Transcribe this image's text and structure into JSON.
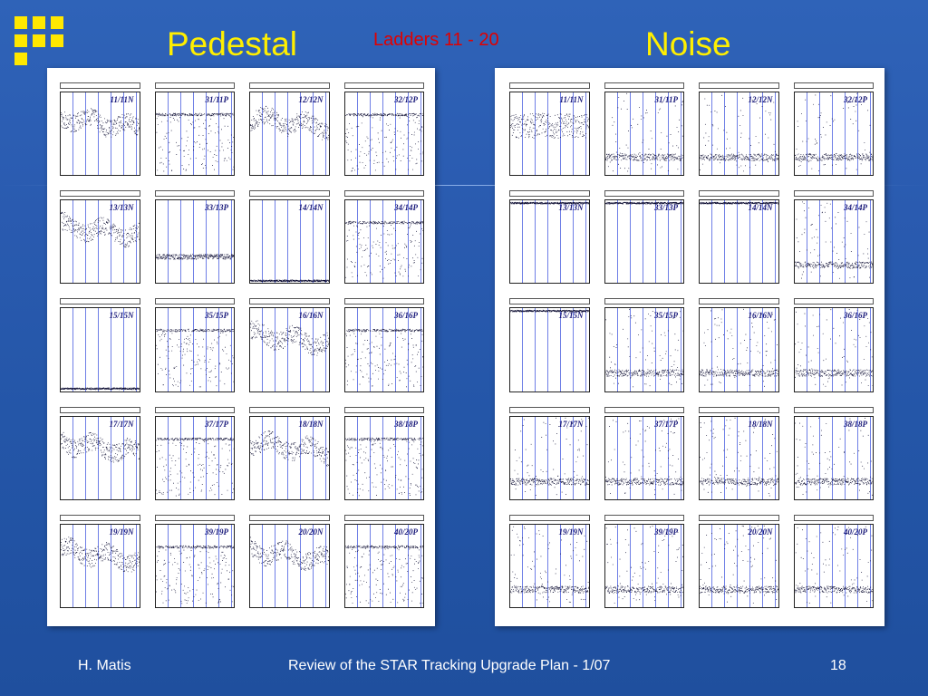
{
  "slide": {
    "title_left": "Pedestal",
    "title_center": "Ladders 11 - 20",
    "title_right": "Noise",
    "footer_left": "H. Matis",
    "footer_center": "Review of the STAR Tracking Upgrade Plan - 1/07",
    "footer_right": "18"
  },
  "colors": {
    "background": "#2a5bb0",
    "title": "#ffef00",
    "subtitle": "#e00000",
    "grid": "#6f7fe6"
  },
  "pedestal_plots": [
    {
      "label": "11/11N",
      "style": "band"
    },
    {
      "label": "31/11P",
      "style": "sat"
    },
    {
      "label": "12/12N",
      "style": "band"
    },
    {
      "label": "32/12P",
      "style": "sat"
    },
    {
      "label": "13/13N",
      "style": "band"
    },
    {
      "label": "33/13P",
      "style": "low"
    },
    {
      "label": "14/14N",
      "style": "flat"
    },
    {
      "label": "34/14P",
      "style": "sat"
    },
    {
      "label": "15/15N",
      "style": "flat"
    },
    {
      "label": "35/15P",
      "style": "sat"
    },
    {
      "label": "16/16N",
      "style": "band"
    },
    {
      "label": "36/16P",
      "style": "sat"
    },
    {
      "label": "17/17N",
      "style": "band"
    },
    {
      "label": "37/17P",
      "style": "sat"
    },
    {
      "label": "18/18N",
      "style": "band"
    },
    {
      "label": "38/18P",
      "style": "sat"
    },
    {
      "label": "19/19N",
      "style": "band"
    },
    {
      "label": "39/19P",
      "style": "sat"
    },
    {
      "label": "20/20N",
      "style": "band"
    },
    {
      "label": "40/20P",
      "style": "sat"
    }
  ],
  "noise_plots": [
    {
      "label": "11/11N",
      "style": "noiseband"
    },
    {
      "label": "31/11P",
      "style": "noise"
    },
    {
      "label": "12/12N",
      "style": "noise"
    },
    {
      "label": "32/12P",
      "style": "noise"
    },
    {
      "label": "13/13N",
      "style": "top"
    },
    {
      "label": "33/13P",
      "style": "top"
    },
    {
      "label": "14/14N",
      "style": "top"
    },
    {
      "label": "34/14P",
      "style": "noise"
    },
    {
      "label": "15/15N",
      "style": "top"
    },
    {
      "label": "35/15P",
      "style": "noise"
    },
    {
      "label": "16/16N",
      "style": "noise"
    },
    {
      "label": "36/16P",
      "style": "noise"
    },
    {
      "label": "17/17N",
      "style": "noise"
    },
    {
      "label": "37/17P",
      "style": "noise"
    },
    {
      "label": "18/18N",
      "style": "noise"
    },
    {
      "label": "38/18P",
      "style": "noise"
    },
    {
      "label": "19/19N",
      "style": "noise"
    },
    {
      "label": "39/19P",
      "style": "noise"
    },
    {
      "label": "20/20N",
      "style": "noise"
    },
    {
      "label": "40/20P",
      "style": "noise"
    }
  ]
}
